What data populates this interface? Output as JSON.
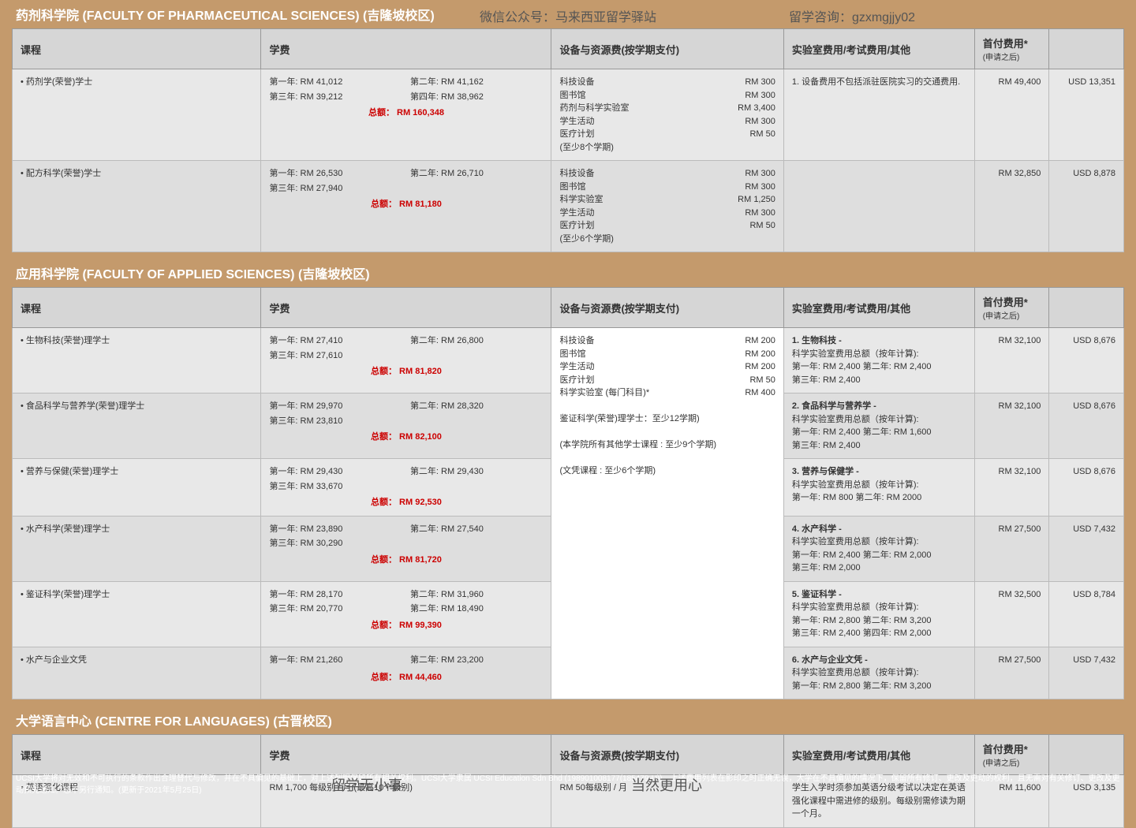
{
  "overlay": {
    "wechat": "微信公众号：马来西亚留学驿站",
    "consult": "留学咨询：gzxmgjjy02"
  },
  "headers": {
    "course": "课程",
    "fee": "学费",
    "equip": "设备与资源费(按学期支付)",
    "lab": "实验室费用/考试费用/其他",
    "firstpay": "首付费用*",
    "firstpay_sub": "(申请之后)"
  },
  "fac1": {
    "title": "药剂科学院 (FACULTY OF PHARMACEUTICAL SCIENCES) (吉隆坡校区)",
    "r1": {
      "name": "• 药剂学(荣誉)学士",
      "y1": "第一年: RM 41,012",
      "y2": "第二年: RM 41,162",
      "y3": "第三年: RM 39,212",
      "y4": "第四年: RM 38,962",
      "total": "总额： RM 160,348",
      "eq": [
        [
          "科技设备",
          "RM    300"
        ],
        [
          "图书馆",
          "RM    300"
        ],
        [
          "药剂与科学实验室",
          "RM 3,400"
        ],
        [
          "学生活动",
          "RM    300"
        ],
        [
          "医疗计划",
          "RM      50"
        ]
      ],
      "eq_note": "(至少8个学期)",
      "lab": "1. 设备费用不包括派驻医院实习的交通费用.",
      "rm": "RM 49,400",
      "usd": "USD 13,351"
    },
    "r2": {
      "name": "• 配方科学(荣誉)学士",
      "y1": "第一年: RM 26,530",
      "y2": "第二年: RM 26,710",
      "y3": "第三年: RM 27,940",
      "total": "总额： RM 81,180",
      "eq": [
        [
          "科技设备",
          "RM    300"
        ],
        [
          "图书馆",
          "RM    300"
        ],
        [
          "科学实验室",
          "RM 1,250"
        ],
        [
          "学生活动",
          "RM    300"
        ],
        [
          "医疗计划",
          "RM      50"
        ]
      ],
      "eq_note": "(至少6个学期)",
      "rm": "RM 32,850",
      "usd": "USD 8,878"
    }
  },
  "fac2": {
    "title": "应用科学院 (FACULTY OF APPLIED SCIENCES) (吉隆坡校区)",
    "shared_eq": [
      [
        "科技设备",
        "RM    200"
      ],
      [
        "图书馆",
        "RM    200"
      ],
      [
        "学生活动",
        "RM    200"
      ],
      [
        "医疗计划",
        "RM      50"
      ],
      [
        "科学实验室 (每门科目)*",
        "RM    400"
      ]
    ],
    "shared_notes": [
      "鉴证科学(荣誉)理学士：至少12学期)",
      "(本学院所有其他学士课程 : 至少9个学期)",
      "(文凭课程 : 至少6个学期)"
    ],
    "r1": {
      "name": "• 生物科技(荣誉)理学士",
      "y1": "第一年: RM 27,410",
      "y2": "第二年: RM 26,800",
      "y3": "第三年: RM 27,610",
      "total": "总额： RM 81,820",
      "lab": "1. 生物科技 -\n科学实验室费用总额（按年计算):\n第一年: RM 2,400    第二年: RM 2,400\n第三年: RM 2,400",
      "rm": "RM 32,100",
      "usd": "USD  8,676"
    },
    "r2": {
      "name": "• 食品科学与营养学(荣誉)理学士",
      "y1": "第一年: RM 29,970",
      "y2": "第二年: RM 28,320",
      "y3": "第三年: RM 23,810",
      "total": "总额： RM 82,100",
      "lab": "2. 食品科学与营养学 -\n科学实验室费用总额（按年计算):\n第一年: RM 2,400    第二年: RM 1,600\n第三年: RM 2,400",
      "rm": "RM 32,100",
      "usd": "USD  8,676"
    },
    "r3": {
      "name": "• 营养与保健(荣誉)理学士",
      "y1": "第一年: RM 29,430",
      "y2": "第二年: RM 29,430",
      "y3": "第三年: RM 33,670",
      "total": "总额： RM 92,530",
      "lab": "3. 营养与保健学 -\n科学实验室费用总额（按年计算):\n第一年: RM 800        第二年: RM 2000",
      "rm": "RM 32,100",
      "usd": "USD  8,676"
    },
    "r4": {
      "name": "• 水产科学(荣誉)理学士",
      "y1": "第一年: RM 23,890",
      "y2": "第二年: RM 27,540",
      "y3": "第三年: RM 30,290",
      "total": "总额： RM 81,720",
      "lab": "4. 水产科学 -\n科学实验室费用总额（按年计算):\n第一年: RM 2,400    第二年: RM 2,000\n第三年: RM 2,000",
      "rm": "RM 27,500",
      "usd": "USD  7,432"
    },
    "r5": {
      "name": "• 鉴证科学(荣誉)理学士",
      "y1": "第一年: RM 28,170",
      "y2": "第二年: RM 31,960",
      "y3": "第三年: RM 20,770",
      "y4": "第二年: RM 18,490",
      "total": "总额： RM 99,390",
      "lab": "5. 鉴证科学 -\n科学实验室费用总额（按年计算):\n第一年: RM 2,800    第二年: RM 3,200\n第三年: RM 2,400    第四年: RM 2,000",
      "rm": "RM 32,500",
      "usd": "USD  8,784"
    },
    "r6": {
      "name": "• 水产与企业文凭",
      "y1": "第一年: RM 21,260",
      "y2": "第二年: RM 23,200",
      "total": "总额： RM 44,460",
      "lab": "6. 水产与企业文凭 -\n科学实验室费用总额（按年计算):\n第一年: RM 2,800        第二年: RM 3,200",
      "rm": "RM 27,500",
      "usd": "USD  7,432"
    }
  },
  "fac3": {
    "title": "大学语言中心 (CENTRE FOR LANGUAGES) (古晋校区)",
    "r1": {
      "name": "• 英语强化课程",
      "fee": "RM 1,700 每级别 / 月 (最高10个级别)",
      "equip": "RM 50每级别 / 月",
      "lab": "学生入学时须参加英语分级考试以决定在英语强化课程中需进修的级别。每级别需修读为期一个月。",
      "rm": "RM 11,600",
      "usd": "USD  3,135"
    }
  },
  "footer": "UCSI大学将对无效和不可执行的条款作出合理替代与修改，并在不具偏见的基础上，对上述列明保留所有相关权利。UCSI大学隶属 UCSI Education Sdn Bhd (198901008177(185479-U))。上述费用列表在影印之时正确无误，大学在不具偏见的情况下，保留所有修订、更改及更动的权利，且无需对有关修订、更改及更动预先通知。恕不另行通知。(更新于2021年5月25日)",
  "footerTags": {
    "left": "留学无小事",
    "right": "当然更用心"
  }
}
